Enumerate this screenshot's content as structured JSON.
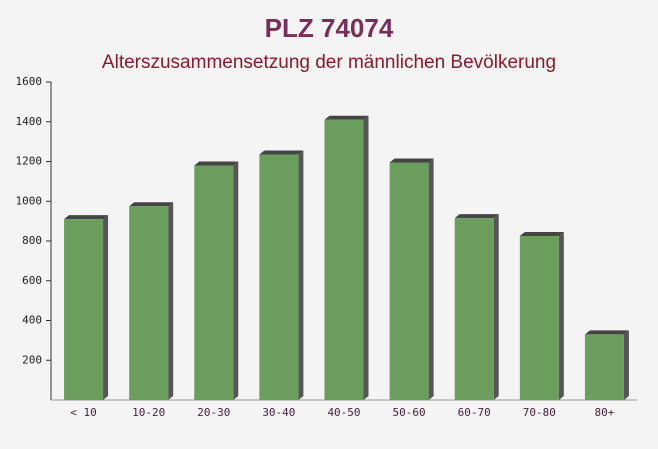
{
  "chart_data": {
    "type": "bar",
    "title": "PLZ 74074",
    "subtitle": "Alterszusammensetzung der männlichen Bevölkerung",
    "categories": [
      "< 10",
      "10-20",
      "20-30",
      "30-40",
      "40-50",
      "50-60",
      "60-70",
      "70-80",
      "80+"
    ],
    "values": [
      910,
      975,
      1180,
      1235,
      1410,
      1195,
      915,
      825,
      330
    ],
    "color": "#6b9e5c",
    "ylim": [
      0,
      1600
    ],
    "yticks": [
      200,
      400,
      600,
      800,
      1000,
      1200,
      1400,
      1600
    ]
  }
}
